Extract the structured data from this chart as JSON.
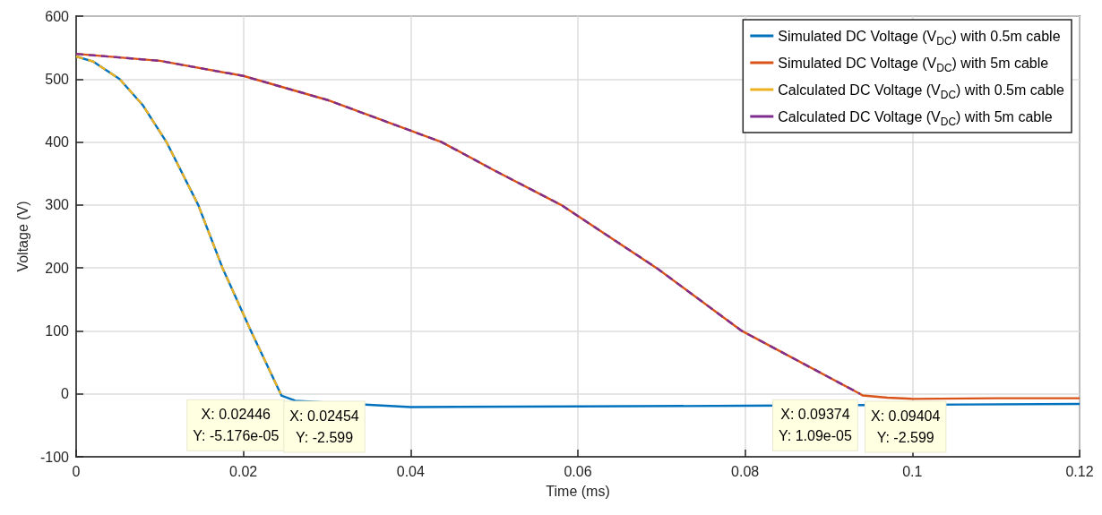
{
  "chart_data": {
    "type": "line",
    "xlabel": "Time (ms)",
    "ylabel": "Voltage (V)",
    "xlim": [
      0,
      0.12
    ],
    "xticks": [
      0,
      0.02,
      0.04,
      0.06,
      0.08,
      0.1,
      0.12
    ],
    "ylim": [
      -100,
      600
    ],
    "yticks": [
      -100,
      0,
      100,
      200,
      300,
      400,
      500,
      600
    ],
    "grid": true,
    "legend": "top right",
    "marker": "none",
    "series": [
      {
        "name": "Simulated DC Voltage (V$_{DC}$) with 0.5m cable",
        "color": "#0072bd",
        "line_style": "solid",
        "x": [
          0,
          0.002,
          0.0052,
          0.008,
          0.0108,
          0.0146,
          0.0175,
          0.0209,
          0.02446,
          0.02454,
          0.0262,
          0.04,
          0.06,
          0.08,
          0.106,
          0.12
        ],
        "values": [
          536,
          528,
          500,
          458,
          400,
          300,
          200,
          100,
          0,
          -2.599,
          -11,
          -21,
          -20,
          -19,
          -17,
          -16
        ]
      },
      {
        "name": "Simulated DC Voltage (V$_{DC}$) with 5m cable",
        "color": "#d95319",
        "line_style": "solid",
        "x": [
          0,
          0.01,
          0.02,
          0.03,
          0.0437,
          0.05,
          0.058,
          0.0694,
          0.0796,
          0.09374,
          0.09404,
          0.097,
          0.1,
          0.11,
          0.12
        ],
        "values": [
          540,
          529,
          505,
          467,
          400,
          355,
          300,
          200,
          100,
          0,
          -2.599,
          -6,
          -8,
          -7,
          -7
        ]
      },
      {
        "name": "Calculated DC Voltage (V$_{DC}$) with 0.5m cable",
        "color": "#edb120",
        "line_style": "dashed",
        "x": [
          0,
          0.002,
          0.0052,
          0.008,
          0.0108,
          0.0146,
          0.0175,
          0.0209,
          0.02446
        ],
        "values": [
          536,
          528,
          500,
          458,
          400,
          300,
          200,
          100,
          0
        ]
      },
      {
        "name": "Calculated DC Voltage (V$_{DC}$) with 5m cable",
        "color": "#7e2f8e",
        "line_style": "dashed",
        "x": [
          0,
          0.01,
          0.02,
          0.03,
          0.0437,
          0.05,
          0.058,
          0.0694,
          0.0796,
          0.09374
        ],
        "values": [
          540,
          529,
          505,
          467,
          400,
          355,
          300,
          200,
          100,
          0
        ]
      }
    ],
    "annotations": [
      {
        "text": "X: 0.02446\nY: -5.176e-05",
        "x": 0.02446,
        "y": -5.176e-05
      },
      {
        "text": "X: 0.02454\nY: -2.599",
        "x": 0.02454,
        "y": -2.599
      },
      {
        "text": "X: 0.09374\nY: 1.09e-05",
        "x": 0.09374,
        "y": 1.09e-05
      },
      {
        "text": "X: 0.09404\nY: -2.599",
        "x": 0.09404,
        "y": -2.599
      }
    ]
  }
}
